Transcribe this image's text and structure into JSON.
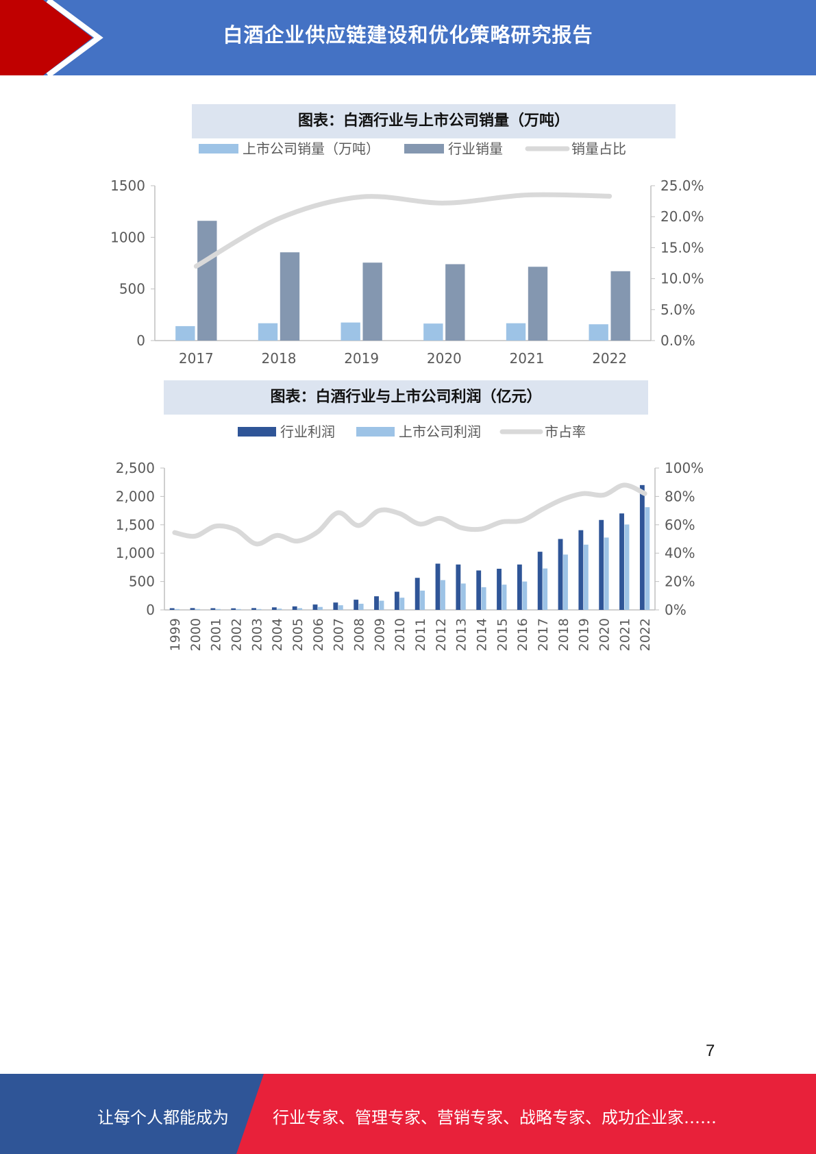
{
  "header": {
    "title": "白酒企业供应链建设和优化策略研究报告"
  },
  "colors": {
    "header_blue": "#4472c4",
    "accent_red": "#c00000",
    "footer_blue": "#2f5597",
    "footer_red": "#e8213a",
    "bar_light_blue": "#9dc3e6",
    "bar_slate": "#8497b0",
    "bar_navy": "#2f5597",
    "line_gray": "#d9d9d9"
  },
  "chart_data": [
    {
      "type": "bar",
      "title": "图表：白酒行业与上市公司销量（万吨）",
      "categories": [
        "2017",
        "2018",
        "2019",
        "2020",
        "2021",
        "2022"
      ],
      "series": [
        {
          "name": "上市公司销量（万吨）",
          "kind": "bar",
          "axis": "left",
          "color": "#9dc3e6",
          "values": [
            140,
            168,
            175,
            165,
            168,
            158
          ]
        },
        {
          "name": "行业销量",
          "kind": "bar",
          "axis": "left",
          "color": "#8497b0",
          "values": [
            1160,
            855,
            755,
            740,
            715,
            672
          ]
        },
        {
          "name": "销量占比",
          "kind": "line",
          "axis": "right",
          "color": "#d9d9d9",
          "values": [
            12.0,
            19.7,
            23.2,
            22.2,
            23.5,
            23.3
          ]
        }
      ],
      "ylim": [
        0,
        1500
      ],
      "yticks": [
        "1500",
        "1000",
        "500",
        "0"
      ],
      "y2lim": [
        0,
        25
      ],
      "y2ticks": [
        "25.0%",
        "20.0%",
        "15.0%",
        "10.0%",
        "5.0%",
        "0.0%"
      ],
      "legend_position": "top",
      "grid": false
    },
    {
      "type": "bar",
      "title": "图表：白酒行业与上市公司利润（亿元）",
      "categories": [
        "1999",
        "2000",
        "2001",
        "2002",
        "2003",
        "2004",
        "2005",
        "2006",
        "2007",
        "2008",
        "2009",
        "2010",
        "2011",
        "2012",
        "2013",
        "2014",
        "2015",
        "2016",
        "2017",
        "2018",
        "2019",
        "2020",
        "2021",
        "2022"
      ],
      "series": [
        {
          "name": "行业利润",
          "kind": "bar",
          "axis": "left",
          "color": "#2f5597",
          "values": [
            30,
            32,
            30,
            28,
            32,
            45,
            62,
            95,
            130,
            180,
            240,
            320,
            565,
            815,
            800,
            695,
            725,
            800,
            1025,
            1250,
            1405,
            1585,
            1700,
            2200
          ]
        },
        {
          "name": "上市公司利润",
          "kind": "bar",
          "axis": "left",
          "color": "#9dc3e6",
          "values": [
            15,
            16,
            16,
            15,
            15,
            22,
            30,
            52,
            82,
            108,
            162,
            215,
            340,
            525,
            465,
            400,
            445,
            500,
            730,
            975,
            1150,
            1275,
            1505,
            1810
          ]
        },
        {
          "name": "市占率",
          "kind": "line",
          "axis": "right",
          "color": "#d9d9d9",
          "values": [
            54.5,
            52,
            59,
            56.5,
            46.5,
            52.5,
            48.5,
            55,
            68.5,
            59.5,
            70,
            68,
            60.5,
            64.5,
            58,
            57,
            62,
            63,
            71,
            78,
            82,
            81,
            88,
            82
          ]
        }
      ],
      "ylim": [
        0,
        2500
      ],
      "yticks": [
        "2,500",
        "2,000",
        "1,500",
        "1,000",
        "500",
        "0"
      ],
      "y2lim": [
        0,
        100
      ],
      "y2ticks": [
        "100%",
        "80%",
        "60%",
        "40%",
        "20%",
        "0%"
      ],
      "legend_position": "top",
      "grid": false
    }
  ],
  "page_number": "7",
  "footer": {
    "left_text": "让每个人都能成为",
    "right_text": "行业专家、管理专家、营销专家、战略专家、成功企业家……"
  }
}
